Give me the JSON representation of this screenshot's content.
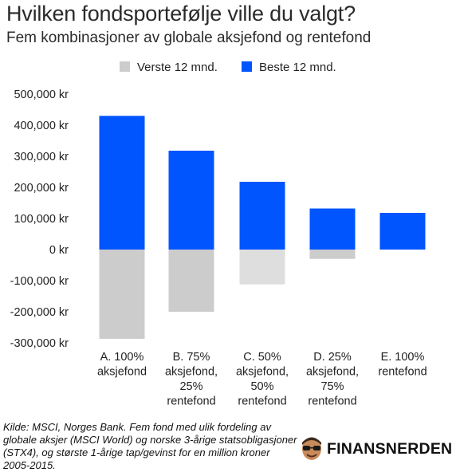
{
  "header": {
    "title": "Hvilken fondsportefølje ville du valgt?",
    "subtitle": "Fem kombinasjoner av globale aksjefond og rentefond"
  },
  "chart_data": {
    "type": "bar",
    "title": "",
    "xlabel": "",
    "ylabel": "",
    "ylim": [
      -300000,
      500000
    ],
    "yticks": [
      500000,
      400000,
      300000,
      200000,
      100000,
      0,
      -100000,
      -200000,
      -300000
    ],
    "ytick_labels": [
      "500,000 kr",
      "400,000 kr",
      "300,000 kr",
      "200,000 kr",
      "100,000 kr",
      "0 kr",
      "-100,000 kr",
      "-200,000 kr",
      "-300,000 kr"
    ],
    "grid": false,
    "legend_position": "top",
    "categories": [
      [
        "A. 100%",
        "aksjefond"
      ],
      [
        "B. 75%",
        "aksjefond,",
        "25%",
        "rentefond"
      ],
      [
        "C. 50%",
        "aksjefond,",
        "50%",
        "rentefond"
      ],
      [
        "D. 25%",
        "aksjefond,",
        "75%",
        "rentefond"
      ],
      [
        "E. 100%",
        "rentefond"
      ]
    ],
    "series": [
      {
        "name": "Verste 12 mnd.",
        "color": "#cccccc",
        "values": [
          -287000,
          -200000,
          -112000,
          -30000,
          0
        ]
      },
      {
        "name": "Beste 12 mnd.",
        "color": "#0055ff",
        "values": [
          430000,
          318000,
          218000,
          132000,
          118000
        ]
      }
    ],
    "highlight_color": "#dedede",
    "highlight_index": 2
  },
  "footer": {
    "source": "Kilde: MSCI, Norges Bank. Fem fond med ulik fordeling av globale aksjer (MSCI World) og norske 3-årige statsobligasjoner (STX4), og største 1-årige tap/gevinst for en million kroner 2005-2015.",
    "brand": "FINANSNERDEN"
  }
}
